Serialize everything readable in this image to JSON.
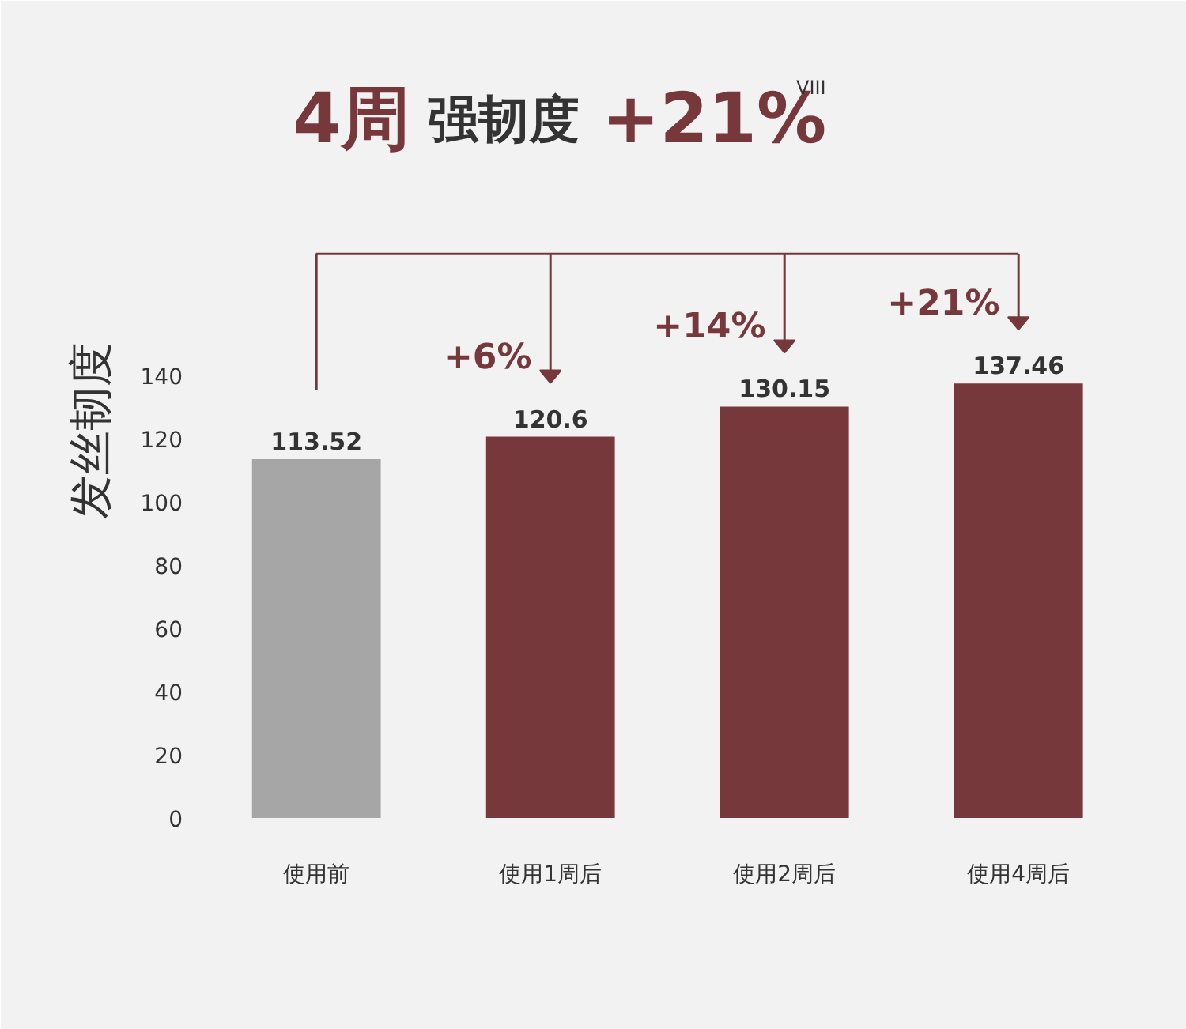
{
  "chart_data": {
    "type": "bar",
    "title": "4周 强韧度 +21%$^{VIII}$",
    "ylabel": "发丝韧度",
    "categories": [
      "使用前",
      "使用1周后",
      "使用2周后",
      "使用4周后"
    ],
    "values": [
      113.52,
      120.6,
      130.15,
      137.46
    ],
    "colors": [
      "#a6a6a6",
      "#76383b",
      "#76383b",
      "#76383b"
    ],
    "ylim": [
      0,
      245
    ],
    "yticks": [
      0,
      20,
      40,
      60,
      80,
      100,
      120,
      140
    ],
    "grid": false,
    "data_labels": true,
    "annotations": [
      "+6%",
      "+14%",
      "+21%"
    ]
  }
}
